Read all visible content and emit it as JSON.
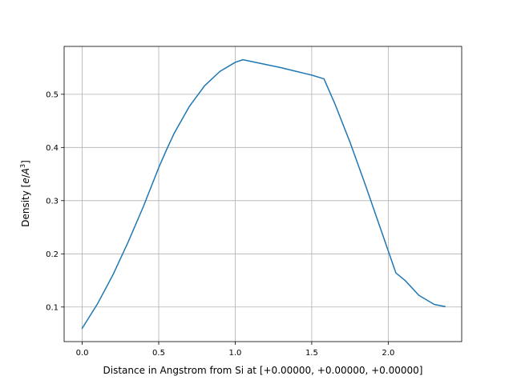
{
  "chart_data": {
    "type": "line",
    "title": "",
    "xlabel": "Distance in Angstrom from Si at [+0.00000, +0.00000, +0.00000]",
    "ylabel_prefix": "Density [",
    "ylabel_unit_e": "e",
    "ylabel_unit_slash": "/",
    "ylabel_unit_a": "A",
    "ylabel_unit_exp": "3",
    "ylabel_suffix": "]",
    "xlim": [
      -0.118,
      2.48
    ],
    "ylim": [
      0.035,
      0.59
    ],
    "grid": true,
    "line_color": "#1f77b4",
    "x_ticks": [
      {
        "value": 0.0,
        "label": "0.0"
      },
      {
        "value": 0.5,
        "label": "0.5"
      },
      {
        "value": 1.0,
        "label": "1.0"
      },
      {
        "value": 1.5,
        "label": "1.5"
      },
      {
        "value": 2.0,
        "label": "2.0"
      }
    ],
    "y_ticks": [
      {
        "value": 0.1,
        "label": "0.1"
      },
      {
        "value": 0.2,
        "label": "0.2"
      },
      {
        "value": 0.3,
        "label": "0.3"
      },
      {
        "value": 0.4,
        "label": "0.4"
      },
      {
        "value": 0.5,
        "label": "0.5"
      }
    ],
    "series": [
      {
        "x": [
          0.0,
          0.1,
          0.2,
          0.3,
          0.4,
          0.5,
          0.55,
          0.6,
          0.7,
          0.8,
          0.9,
          1.0,
          1.05,
          1.1,
          1.2,
          1.3,
          1.4,
          1.5,
          1.58,
          1.65,
          1.75,
          1.85,
          1.95,
          2.05,
          2.11,
          2.2,
          2.3,
          2.37
        ],
        "y": [
          0.06,
          0.106,
          0.16,
          0.222,
          0.289,
          0.362,
          0.395,
          0.426,
          0.477,
          0.516,
          0.543,
          0.56,
          0.565,
          0.562,
          0.556,
          0.55,
          0.543,
          0.536,
          0.529,
          0.483,
          0.41,
          0.33,
          0.247,
          0.164,
          0.15,
          0.122,
          0.105,
          0.101
        ]
      }
    ]
  }
}
